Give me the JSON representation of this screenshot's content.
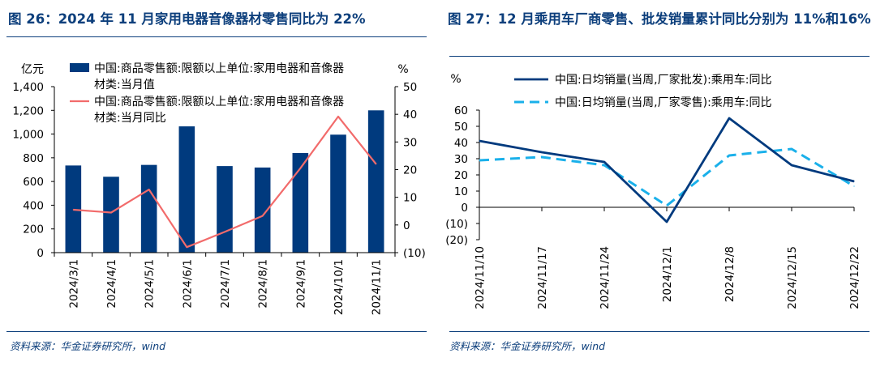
{
  "left": {
    "title": "图 26：2024 年 11 月家用电器音像器材零售同比为 22%",
    "source": "资料来源：华金证券研究所，wind"
  },
  "right": {
    "title": "图 27：12 月乘用车厂商零售、批发销量累计同比分别为 11%和16%",
    "source": "资料来源：华金证券研究所，wind"
  },
  "colors": {
    "navy": "#003a7e",
    "salmon": "#f26b6b",
    "sky": "#1ab0ea",
    "title": "#0d3f7c"
  },
  "chart_data": [
    {
      "type": "bar",
      "categories": [
        "2024/3/1",
        "2024/4/1",
        "2024/5/1",
        "2024/6/1",
        "2024/7/1",
        "2024/8/1",
        "2024/9/1",
        "2024/10/1",
        "2024/11/1"
      ],
      "y_unit_left": "亿元",
      "y_unit_right": "%",
      "left_ticks": [
        "0",
        "200",
        "400",
        "600",
        "800",
        "1,000",
        "1,200",
        "1,400"
      ],
      "right_ticks": [
        "(10)",
        "0",
        "10",
        "20",
        "30",
        "40",
        "50"
      ],
      "ylim_left": [
        0,
        1400
      ],
      "ylim_right": [
        -10,
        50
      ],
      "series": [
        {
          "name": "中国:商品零售额:限额以上单位:家用电器和音像器材类:当月值",
          "legend_lines": [
            "中国:商品零售额:限额以上单位:家用电器和音像器",
            "材类:当月值"
          ],
          "kind": "bar",
          "axis": "left",
          "values": [
            735,
            640,
            740,
            1065,
            730,
            718,
            840,
            995,
            1200
          ]
        },
        {
          "name": "中国:商品零售额:限额以上单位:家用电器和音像器材类:当月同比",
          "legend_lines": [
            "中国:商品零售额:限额以上单位:家用电器和音像器",
            "材类:当月同比"
          ],
          "kind": "line",
          "axis": "right",
          "values": [
            5.5,
            4.5,
            12.8,
            -8,
            -2.5,
            3.3,
            20.5,
            39.2,
            22
          ]
        }
      ]
    },
    {
      "type": "line",
      "categories": [
        "2024/11/10",
        "2024/11/17",
        "2024/11/24",
        "2024/12/1",
        "2024/12/8",
        "2024/12/15",
        "2024/12/22"
      ],
      "y_unit": "%",
      "ticks": [
        "(20)",
        "(10)",
        "0",
        "10",
        "20",
        "30",
        "40",
        "50",
        "60"
      ],
      "ylim": [
        -20,
        60
      ],
      "series": [
        {
          "name": "中国:日均销量(当周,厂家批发):乘用车:同比",
          "style": "solid",
          "values": [
            41,
            34,
            28,
            -9,
            55,
            26,
            16
          ]
        },
        {
          "name": "中国:日均销量(当周,厂家零售):乘用车:同比",
          "style": "dashed",
          "values": [
            29,
            31,
            26,
            1,
            32,
            36,
            13
          ]
        }
      ]
    }
  ]
}
